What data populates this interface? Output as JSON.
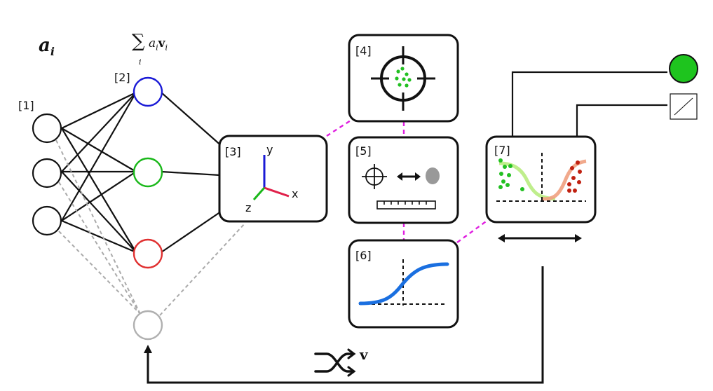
{
  "math": {
    "activation": "a",
    "activation_sub": "i",
    "sum_symbol": "∑",
    "sum_index": "i",
    "sum_a": "a",
    "sum_a_sub": "i",
    "sum_v": "v",
    "sum_v_sub": "i",
    "shuffle_vector": "v"
  },
  "steps": {
    "s1": "[1]",
    "s2": "[2]",
    "s3": "[3]",
    "s4": "[4]",
    "s5": "[5]",
    "s6": "[6]",
    "s7": "[7]"
  },
  "axes3d": {
    "x": "x",
    "y": "y",
    "z": "z"
  },
  "colors": {
    "node_blue": "#1a1ad6",
    "node_green": "#1ab81a",
    "node_red": "#e03030",
    "node_gray": "#b0b0b0",
    "magenta_link": "#e020e0",
    "sigmoid_blue": "#1a6fe0",
    "output_green": "#1ec41e",
    "curve_light_green": "#b8ec80",
    "curve_salmon": "#f0a080",
    "dot_green": "#22c022",
    "dot_red": "#c02010"
  },
  "icons": [
    "crosshair-icon",
    "double-arrow-icon",
    "ruler-icon",
    "shuffle-icon",
    "green-dot-output-icon",
    "diagonal-box-output-icon"
  ]
}
